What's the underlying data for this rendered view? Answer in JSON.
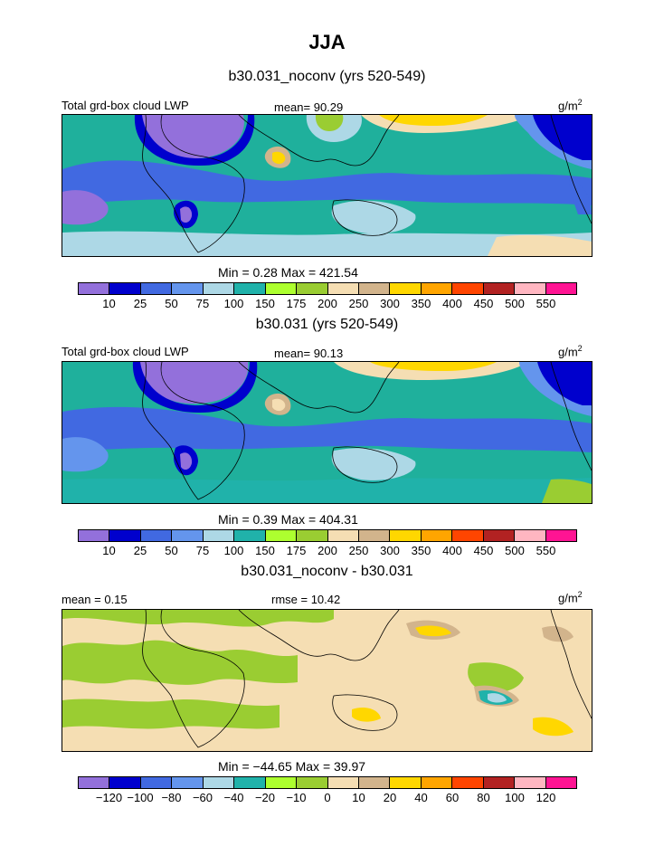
{
  "title": "JJA",
  "panels": [
    {
      "id": "p1",
      "title": "b30.031_noconv (yrs 520-549)",
      "left_label": "Total grd-box cloud LWP",
      "center_label": "mean=  90.29",
      "units": "g/m",
      "units_sup": "2",
      "minmax": "Min =    0.28  Max = 421.54",
      "base_color": "#1fb09c",
      "colorbar": {
        "colors": [
          "#9370db",
          "#0000cd",
          "#4169e1",
          "#6495ed",
          "#add8e6",
          "#20b2aa",
          "#adff2f",
          "#9acd32",
          "#f5deb3",
          "#d2b48c",
          "#ffd700",
          "#ffa500",
          "#ff4500",
          "#b22222",
          "#ffb6c1",
          "#ff1493"
        ],
        "ticks": [
          "10",
          "25",
          "50",
          "75",
          "100",
          "150",
          "175",
          "200",
          "250",
          "300",
          "350",
          "400",
          "450",
          "500",
          "550"
        ]
      }
    },
    {
      "id": "p2",
      "title": "b30.031 (yrs 520-549)",
      "left_label": "Total grd-box cloud LWP",
      "center_label": "mean=  90.13",
      "units": "g/m",
      "units_sup": "2",
      "minmax": "Min =    0.39  Max = 404.31",
      "base_color": "#1fb09c",
      "colorbar": {
        "colors": [
          "#9370db",
          "#0000cd",
          "#4169e1",
          "#6495ed",
          "#add8e6",
          "#20b2aa",
          "#adff2f",
          "#9acd32",
          "#f5deb3",
          "#d2b48c",
          "#ffd700",
          "#ffa500",
          "#ff4500",
          "#b22222",
          "#ffb6c1",
          "#ff1493"
        ],
        "ticks": [
          "10",
          "25",
          "50",
          "75",
          "100",
          "150",
          "175",
          "200",
          "250",
          "300",
          "350",
          "400",
          "450",
          "500",
          "550"
        ]
      }
    },
    {
      "id": "p3",
      "title": "b30.031_noconv - b30.031",
      "left_label": "mean =    0.15",
      "center_label": "rmse =   10.42",
      "units": "g/m",
      "units_sup": "2",
      "minmax": "Min = −44.65  Max =   39.97",
      "base_color": "#f5deb3",
      "colorbar": {
        "colors": [
          "#9370db",
          "#0000cd",
          "#4169e1",
          "#6495ed",
          "#add8e6",
          "#20b2aa",
          "#adff2f",
          "#9acd32",
          "#f5deb3",
          "#d2b48c",
          "#ffd700",
          "#ffa500",
          "#ff4500",
          "#b22222",
          "#ffb6c1",
          "#ff1493"
        ],
        "ticks": [
          "−120",
          "−100",
          "−80",
          "−60",
          "−40",
          "−20",
          "−10",
          "0",
          "10",
          "20",
          "40",
          "60",
          "80",
          "100",
          "120"
        ]
      }
    }
  ]
}
